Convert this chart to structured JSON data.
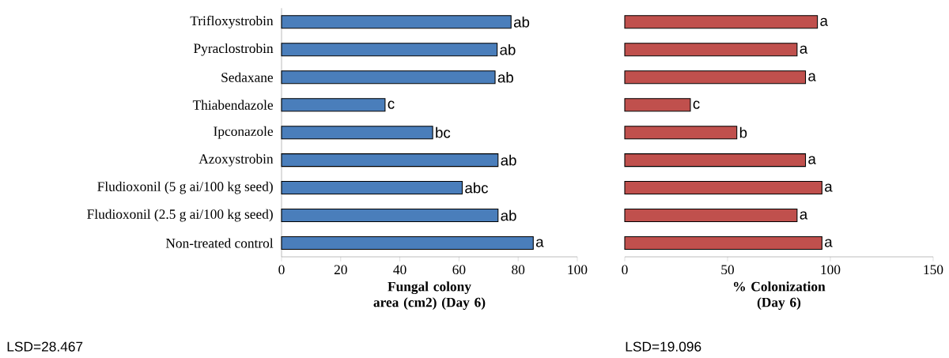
{
  "chart_data": [
    {
      "type": "bar",
      "orientation": "horizontal",
      "categories": [
        "Trifloxystrobin",
        "Pyraclostrobin",
        "Sedaxane",
        "Thiabendazole",
        "Ipconazole",
        "Azoxystrobin",
        "Fludioxonil (5 g ai/100 kg seed)",
        "Fludioxonil (2.5 g ai/100 kg seed)",
        "Non-treated control"
      ],
      "values": [
        77.6,
        72.9,
        72.2,
        35.0,
        51.1,
        73.2,
        61.1,
        73.2,
        85.1
      ],
      "value_labels": [
        "ab",
        "ab",
        "ab",
        "c",
        "bc",
        "ab",
        "abc",
        "ab",
        "a"
      ],
      "color": "#4a7ebb",
      "xlim": [
        0,
        100
      ],
      "xticks": [
        0,
        20,
        40,
        60,
        80,
        100
      ],
      "xlabel": "Fungal colony area (cm2) (Day 6)",
      "annotations": [
        "LSD=28.467"
      ]
    },
    {
      "type": "bar",
      "orientation": "horizontal",
      "categories": [
        null,
        null,
        null,
        null,
        null,
        null,
        null,
        null,
        null
      ],
      "values": [
        93.7,
        83.8,
        87.9,
        31.9,
        54.5,
        87.9,
        95.9,
        83.8,
        95.9
      ],
      "value_labels": [
        "a",
        "a",
        "a",
        "c",
        "b",
        "a",
        "a",
        "a",
        "a"
      ],
      "color": "#c0504d",
      "xlim": [
        0,
        150
      ],
      "xticks": [
        0,
        50,
        100,
        150
      ],
      "tick_labels": "x",
      "xlabel": "% Colonization (Day 6)",
      "annotations": [
        "LSD=19.096"
      ]
    }
  ]
}
